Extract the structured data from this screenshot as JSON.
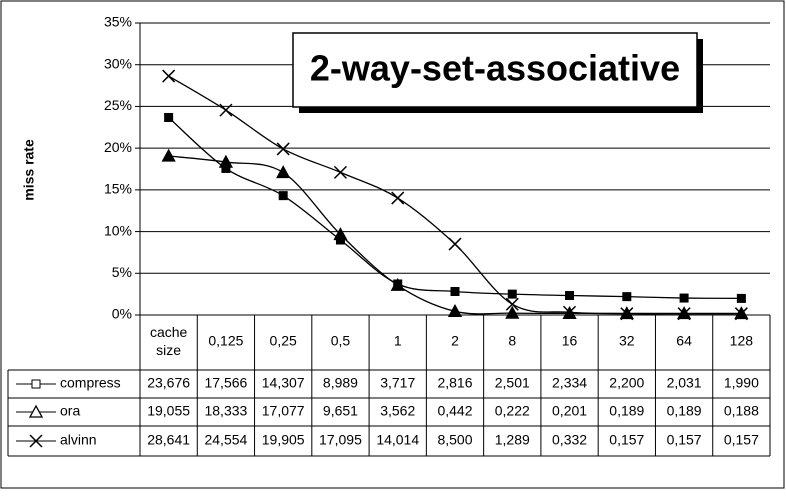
{
  "chart_data": {
    "type": "line",
    "title": "2-way-set-associative",
    "y_label": "miss rate",
    "categories": [
      "cache size",
      "0,125",
      "0,25",
      "0,5",
      "1",
      "2",
      "8",
      "16",
      "32",
      "64",
      "128"
    ],
    "ylim": [
      0,
      35
    ],
    "yticks": [
      {
        "value": 0,
        "label": "0%"
      },
      {
        "value": 5,
        "label": "5%"
      },
      {
        "value": 10,
        "label": "10%"
      },
      {
        "value": 15,
        "label": "15%"
      },
      {
        "value": 20,
        "label": "20%"
      },
      {
        "value": 25,
        "label": "25%"
      },
      {
        "value": 30,
        "label": "30%"
      },
      {
        "value": 35,
        "label": "35%"
      }
    ],
    "grid": true,
    "series": [
      {
        "name": "compress",
        "color": "#000000",
        "marker": "square",
        "values": [
          23.676,
          17.566,
          14.307,
          8.989,
          3.717,
          2.816,
          2.501,
          2.334,
          2.2,
          2.031,
          1.99
        ],
        "value_labels": [
          "23,676",
          "17,566",
          "14,307",
          "8,989",
          "3,717",
          "2,816",
          "2,501",
          "2,334",
          "2,200",
          "2,031",
          "1,990"
        ]
      },
      {
        "name": "ora",
        "color": "#000000",
        "marker": "triangle",
        "values": [
          19.055,
          18.333,
          17.077,
          9.651,
          3.562,
          0.442,
          0.222,
          0.201,
          0.189,
          0.189,
          0.188
        ],
        "value_labels": [
          "19,055",
          "18,333",
          "17,077",
          "9,651",
          "3,562",
          "0,442",
          "0,222",
          "0,201",
          "0,189",
          "0,189",
          "0,188"
        ]
      },
      {
        "name": "alvinn",
        "color": "#000000",
        "marker": "x",
        "values": [
          28.641,
          24.554,
          19.905,
          17.095,
          14.014,
          8.5,
          1.289,
          0.332,
          0.157,
          0.157,
          0.157
        ],
        "value_labels": [
          "28,641",
          "24,554",
          "19,905",
          "17,095",
          "14,014",
          "8,500",
          "1,289",
          "0,332",
          "0,157",
          "0,157",
          "0,157"
        ]
      }
    ]
  }
}
